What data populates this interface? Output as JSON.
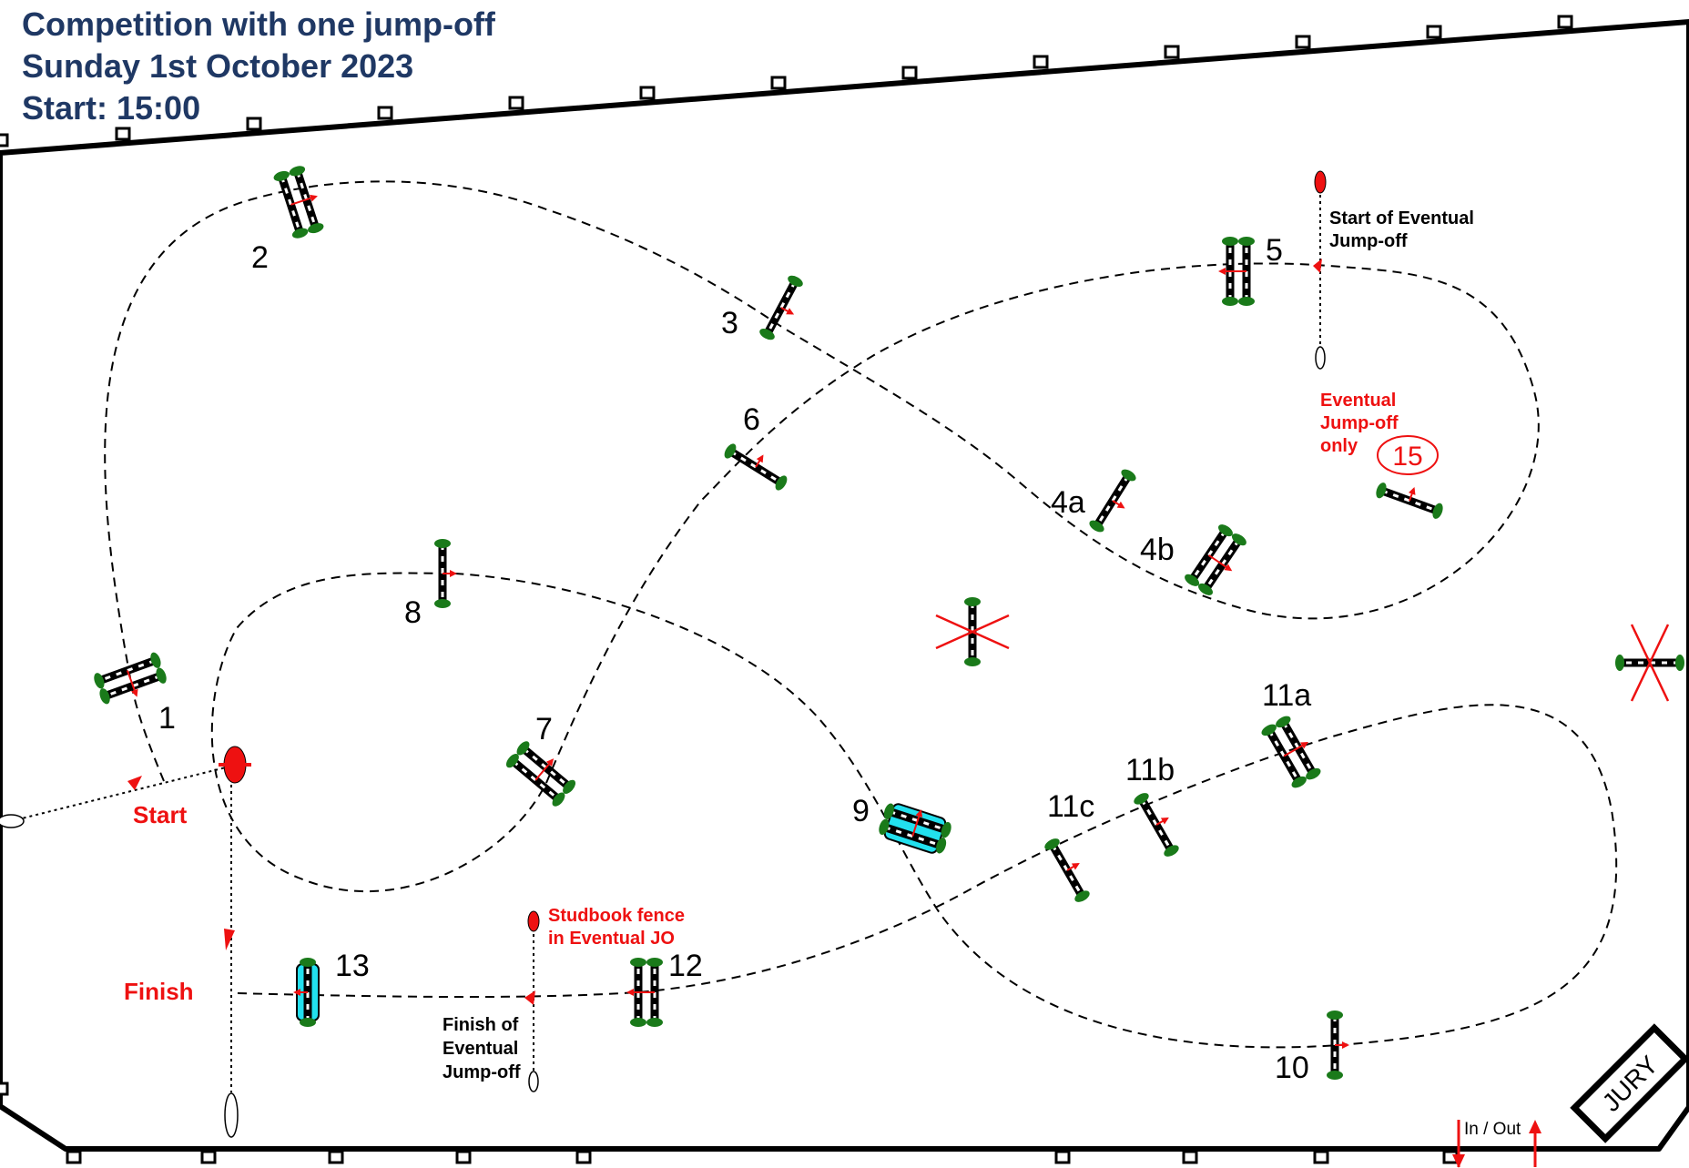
{
  "header": {
    "title": "Competition with one jump-off",
    "date": "Sunday 1st October 2023",
    "start": "Start: 15:00"
  },
  "fences": {
    "f1": "1",
    "f2": "2",
    "f3": "3",
    "f4a": "4a",
    "f4b": "4b",
    "f5": "5",
    "f6": "6",
    "f7": "7",
    "f8": "8",
    "f9": "9",
    "f10": "10",
    "f11a": "11a",
    "f11b": "11b",
    "f11c": "11c",
    "f12": "12",
    "f13": "13",
    "f15": "15"
  },
  "labels": {
    "start": "Start",
    "finish": "Finish",
    "jo_start": [
      "Start of Eventual",
      "Jump-off"
    ],
    "jo_only": [
      "Eventual",
      "Jump-off",
      "only"
    ],
    "studbook": [
      "Studbook fence",
      "in Eventual JO"
    ],
    "jo_finish": [
      "Finish of",
      "Eventual",
      "Jump-off"
    ],
    "in_out": "In / Out",
    "jury": "JURY"
  },
  "colors": {
    "title": "#1f3864",
    "accent_red": "#ee1111",
    "pole_green": "#1a7a1a",
    "water_cyan": "#22e0ee"
  }
}
